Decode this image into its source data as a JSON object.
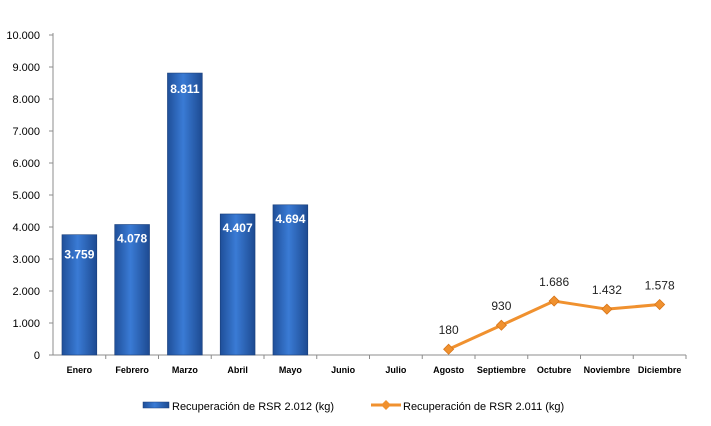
{
  "chart_data": {
    "type": "bar",
    "categories": [
      "Enero",
      "Febrero",
      "Marzo",
      "Abril",
      "Mayo",
      "Junio",
      "Julio",
      "Agosto",
      "Septiembre",
      "Octubre",
      "Noviembre",
      "Diciembre"
    ],
    "ylim": [
      0,
      10000
    ],
    "yticks": [
      "0",
      "1.000",
      "2.000",
      "3.000",
      "4.000",
      "5.000",
      "6.000",
      "7.000",
      "8.000",
      "9.000",
      "10.000"
    ],
    "series": [
      {
        "name": "Recuperación de RSR 2.012 (kg)",
        "kind": "bar",
        "color": "#2f6cc4",
        "values": [
          3759,
          4078,
          8811,
          4407,
          4694,
          null,
          null,
          null,
          null,
          null,
          null,
          null
        ],
        "labels": [
          "3.759",
          "4.078",
          "8.811",
          "4.407",
          "4.694",
          "",
          "",
          "",
          "",
          "",
          "",
          ""
        ]
      },
      {
        "name": "Recuperación de RSR 2.011 (kg)",
        "kind": "line",
        "color": "#f0912f",
        "values": [
          null,
          null,
          null,
          null,
          null,
          null,
          null,
          180,
          930,
          1686,
          1432,
          1578
        ],
        "labels": [
          "",
          "",
          "",
          "",
          "",
          "",
          "",
          "180",
          "930",
          "1.686",
          "1.432",
          "1.578"
        ]
      }
    ],
    "grid": false,
    "legend": "bottom"
  }
}
